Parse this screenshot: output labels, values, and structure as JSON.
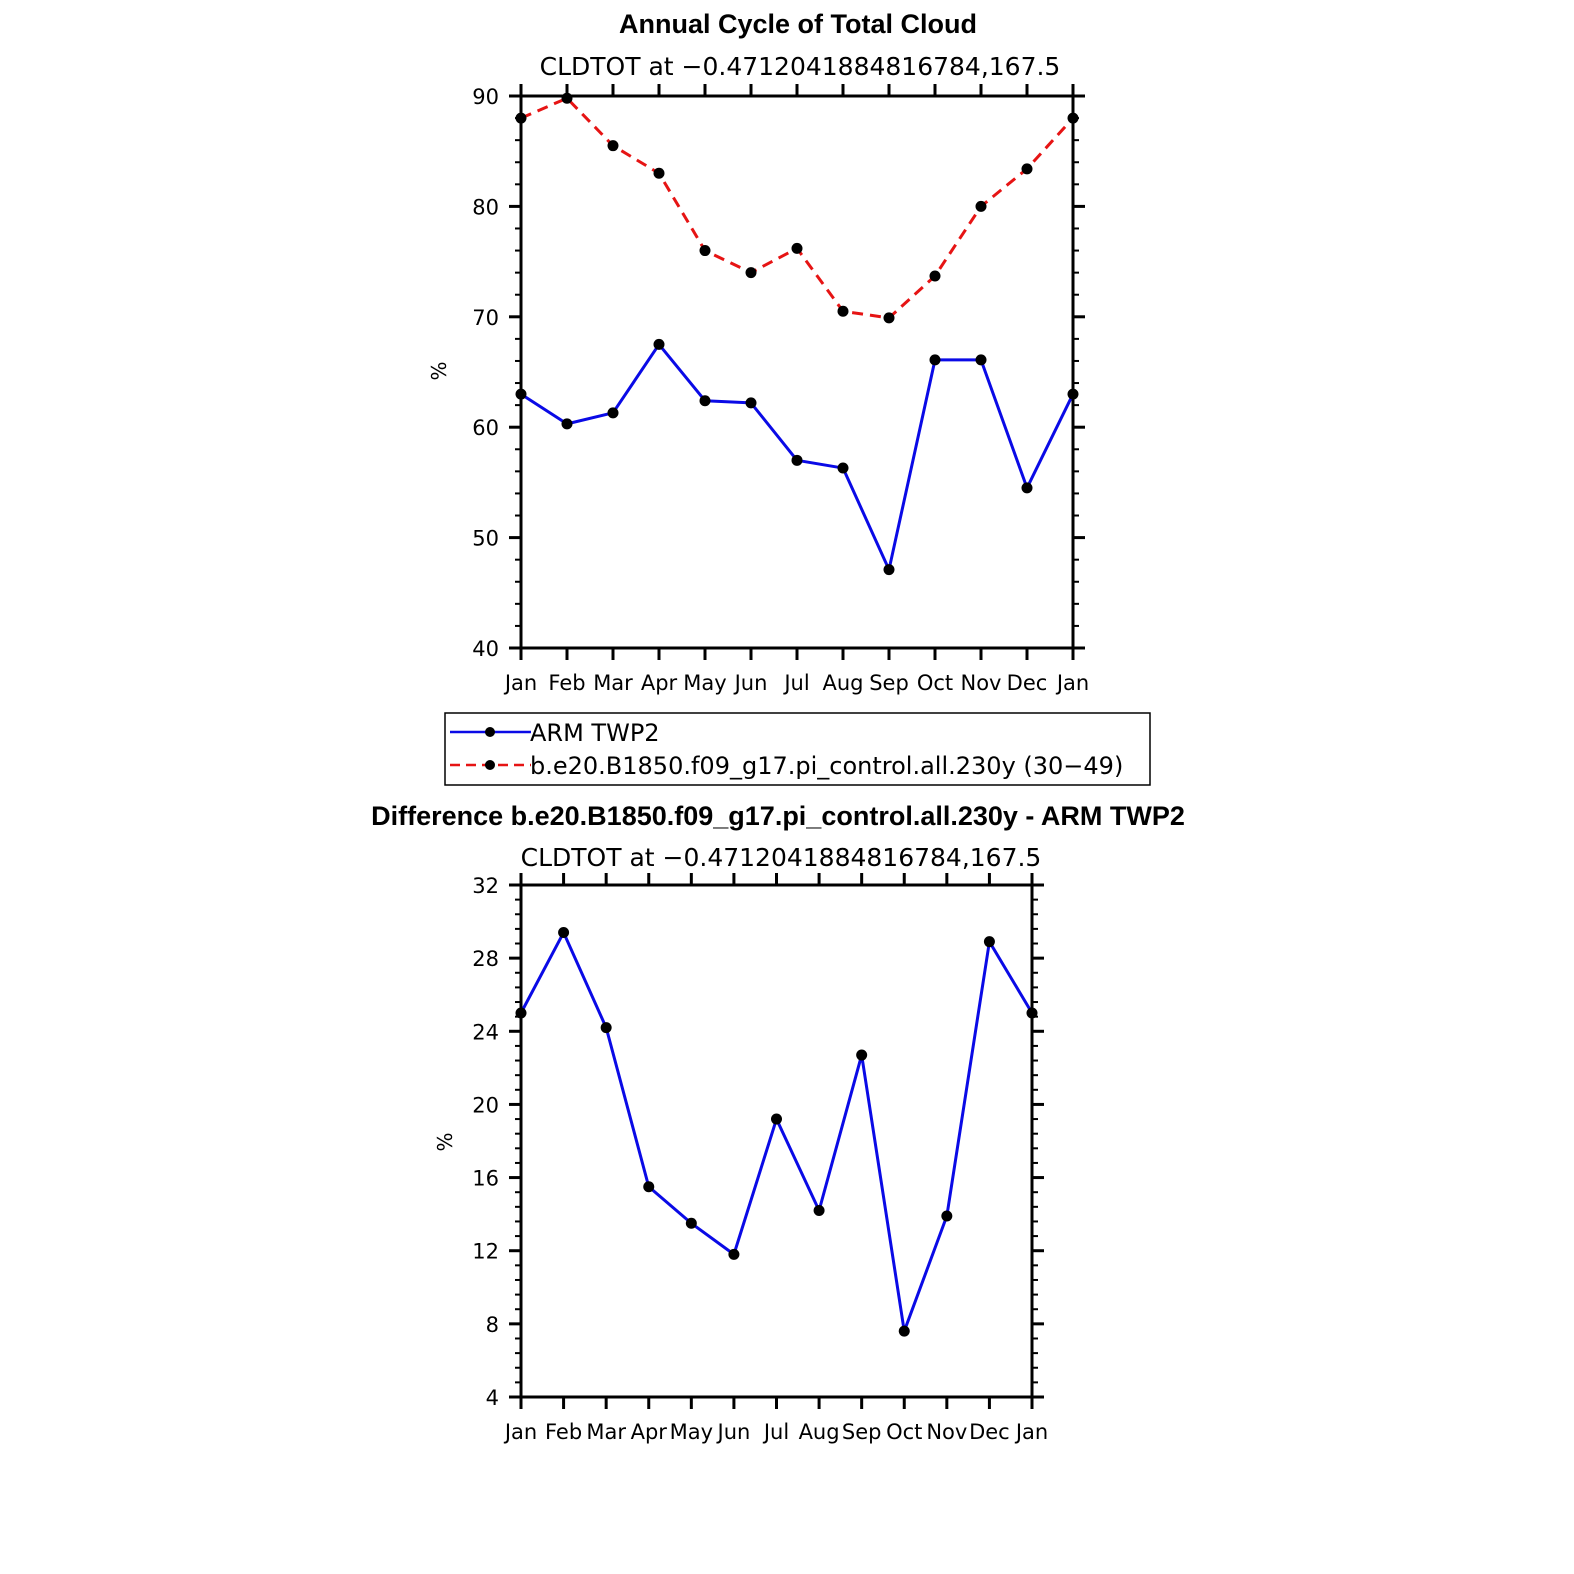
{
  "colors": {
    "obs": "#0a0ae6",
    "model": "#e61414",
    "marker": "#000000",
    "axis": "#000000"
  },
  "legend": {
    "entries": [
      {
        "label": "ARM TWP2",
        "color": "#0a0ae6",
        "style": "solid"
      },
      {
        "label": "b.e20.B1850.f09_g17.pi_control.all.230y (30−49)",
        "color": "#e61414",
        "style": "dashed"
      }
    ]
  },
  "chart_data": [
    {
      "type": "line",
      "title": "Annual Cycle of Total Cloud",
      "subtitle": "CLDTOT at −0.4712041884816784,167.5",
      "ylabel": "%",
      "xlabel": "",
      "categories": [
        "Jan",
        "Feb",
        "Mar",
        "Apr",
        "May",
        "Jun",
        "Jul",
        "Aug",
        "Sep",
        "Oct",
        "Nov",
        "Dec",
        "Jan"
      ],
      "ylim": [
        40,
        90
      ],
      "yticks": [
        40,
        50,
        60,
        70,
        80,
        90
      ],
      "grid": false,
      "series": [
        {
          "name": "ARM TWP2",
          "style": "solid",
          "color": "#0a0ae6",
          "values": [
            63.0,
            60.3,
            61.3,
            67.5,
            62.4,
            62.2,
            57.0,
            56.3,
            47.1,
            66.1,
            66.1,
            54.5,
            63.0
          ]
        },
        {
          "name": "b.e20.B1850.f09_g17.pi_control.all.230y (30−49)",
          "style": "dashed",
          "color": "#e61414",
          "values": [
            88.0,
            89.8,
            85.5,
            83.0,
            76.0,
            74.0,
            76.2,
            70.5,
            69.9,
            73.7,
            80.0,
            83.4,
            88.0
          ]
        }
      ]
    },
    {
      "type": "line",
      "title": "Difference b.e20.B1850.f09_g17.pi_control.all.230y - ARM TWP2",
      "subtitle": "CLDTOT at −0.4712041884816784,167.5",
      "ylabel": "%",
      "xlabel": "",
      "categories": [
        "Jan",
        "Feb",
        "Mar",
        "Apr",
        "May",
        "Jun",
        "Jul",
        "Aug",
        "Sep",
        "Oct",
        "Nov",
        "Dec",
        "Jan"
      ],
      "ylim": [
        4,
        32
      ],
      "yticks": [
        4,
        8,
        12,
        16,
        20,
        24,
        28,
        32
      ],
      "grid": false,
      "series": [
        {
          "name": "",
          "style": "solid",
          "color": "#0a0ae6",
          "values": [
            25.0,
            29.4,
            24.2,
            15.5,
            13.5,
            11.8,
            19.2,
            14.2,
            22.7,
            7.6,
            13.9,
            28.9,
            25.0
          ]
        }
      ]
    }
  ]
}
